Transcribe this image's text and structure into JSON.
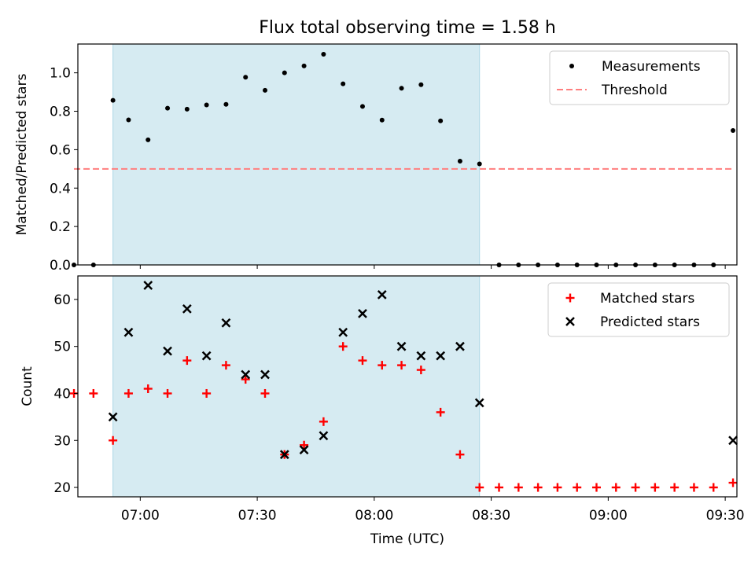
{
  "title": "Flux total observing time = 1.58 h",
  "colors": {
    "span": "#add8e6",
    "threshold": "#ff7f7f",
    "matched": "#ff0000",
    "predicted": "#000000",
    "measurement": "#000000"
  },
  "chart_data": [
    {
      "type": "scatter",
      "ylabel": "Matched/Predicted stars",
      "ylim": [
        0,
        1.15
      ],
      "yticks": [
        "0.0",
        "0.2",
        "0.4",
        "0.6",
        "0.8",
        "1.0"
      ],
      "xlim": [
        "06:44",
        "09:33"
      ],
      "legend_position": "top-right",
      "legend": [
        "Measurements",
        "Threshold"
      ],
      "observing_span": [
        "06:53",
        "08:27"
      ],
      "threshold": {
        "value": 0.5,
        "x_range": [
          "06:43",
          "09:32"
        ]
      },
      "series": [
        {
          "name": "Measurements",
          "x": [
            "06:43",
            "06:48",
            "06:53",
            "06:57",
            "07:02",
            "07:07",
            "07:12",
            "07:17",
            "07:22",
            "07:27",
            "07:32",
            "07:37",
            "07:42",
            "07:47",
            "07:52",
            "07:57",
            "08:02",
            "08:07",
            "08:12",
            "08:17",
            "08:22",
            "08:27",
            "08:32",
            "08:37",
            "08:42",
            "08:47",
            "08:52",
            "08:57",
            "09:02",
            "09:07",
            "09:12",
            "09:17",
            "09:22",
            "09:27",
            "09:32"
          ],
          "y": [
            0,
            0,
            0.857,
            0.755,
            0.651,
            0.816,
            0.811,
            0.833,
            0.836,
            0.977,
            0.909,
            1.0,
            1.036,
            1.097,
            0.943,
            0.825,
            0.754,
            0.92,
            0.938,
            0.75,
            0.54,
            0.526,
            0,
            0,
            0,
            0,
            0,
            0,
            0,
            0,
            0,
            0,
            0,
            0,
            0.7
          ]
        }
      ]
    },
    {
      "type": "scatter",
      "ylabel": "Count",
      "xlabel": "Time (UTC)",
      "ylim": [
        18,
        65
      ],
      "yticks": [
        "20",
        "30",
        "40",
        "50",
        "60"
      ],
      "xticks": [
        "07:00",
        "07:30",
        "08:00",
        "08:30",
        "09:00",
        "09:30"
      ],
      "legend_position": "top-right",
      "legend": [
        "Matched stars",
        "Predicted stars"
      ],
      "observing_span": [
        "06:53",
        "08:27"
      ],
      "series": [
        {
          "name": "Matched stars",
          "x": [
            "06:43",
            "06:48",
            "06:53",
            "06:57",
            "07:02",
            "07:07",
            "07:12",
            "07:17",
            "07:22",
            "07:27",
            "07:32",
            "07:37",
            "07:42",
            "07:47",
            "07:52",
            "07:57",
            "08:02",
            "08:07",
            "08:12",
            "08:17",
            "08:22",
            "08:27",
            "08:32",
            "08:37",
            "08:42",
            "08:47",
            "08:52",
            "08:57",
            "09:02",
            "09:07",
            "09:12",
            "09:17",
            "09:22",
            "09:27",
            "09:32"
          ],
          "y": [
            40,
            40,
            30,
            40,
            41,
            40,
            47,
            40,
            46,
            43,
            40,
            27,
            29,
            34,
            50,
            47,
            46,
            46,
            45,
            36,
            27,
            20,
            20,
            20,
            20,
            20,
            20,
            20,
            20,
            20,
            20,
            20,
            20,
            20,
            21
          ]
        },
        {
          "name": "Predicted stars",
          "x": [
            "06:53",
            "06:57",
            "07:02",
            "07:07",
            "07:12",
            "07:17",
            "07:22",
            "07:27",
            "07:32",
            "07:37",
            "07:42",
            "07:47",
            "07:52",
            "07:57",
            "08:02",
            "08:07",
            "08:12",
            "08:17",
            "08:22",
            "08:27",
            "09:32"
          ],
          "y": [
            35,
            53,
            63,
            49,
            58,
            48,
            55,
            44,
            44,
            27,
            28,
            31,
            53,
            57,
            61,
            50,
            48,
            48,
            50,
            38,
            30
          ]
        }
      ]
    }
  ]
}
